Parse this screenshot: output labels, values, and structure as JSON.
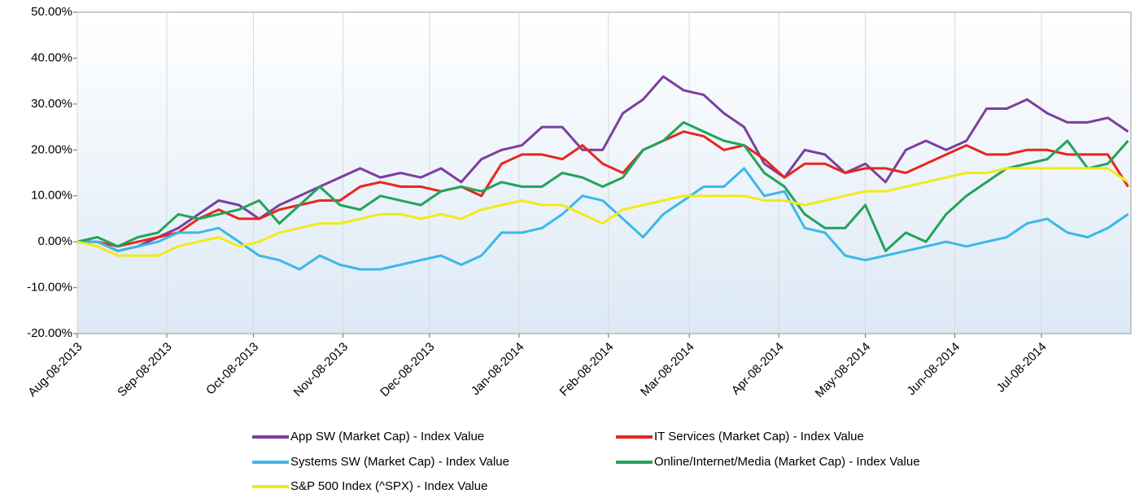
{
  "chart_data": {
    "type": "line",
    "x": [
      "2013-08-08",
      "2013-08-15",
      "2013-08-22",
      "2013-08-29",
      "2013-09-05",
      "2013-09-12",
      "2013-09-19",
      "2013-09-26",
      "2013-10-03",
      "2013-10-10",
      "2013-10-17",
      "2013-10-24",
      "2013-10-31",
      "2013-11-07",
      "2013-11-14",
      "2013-11-21",
      "2013-11-28",
      "2013-12-05",
      "2013-12-12",
      "2013-12-19",
      "2013-12-26",
      "2014-01-02",
      "2014-01-09",
      "2014-01-16",
      "2014-01-23",
      "2014-01-30",
      "2014-02-06",
      "2014-02-13",
      "2014-02-20",
      "2014-02-27",
      "2014-03-06",
      "2014-03-13",
      "2014-03-20",
      "2014-03-27",
      "2014-04-03",
      "2014-04-10",
      "2014-04-17",
      "2014-04-24",
      "2014-05-01",
      "2014-05-08",
      "2014-05-15",
      "2014-05-22",
      "2014-05-29",
      "2014-06-05",
      "2014-06-12",
      "2014-06-19",
      "2014-06-26",
      "2014-07-03",
      "2014-07-10",
      "2014-07-17",
      "2014-07-24",
      "2014-07-31",
      "2014-08-07"
    ],
    "series": [
      {
        "name": "App SW (Market Cap) - Index Value",
        "color": "#7b3f9e",
        "values": [
          0,
          0,
          -2,
          -1,
          1,
          3,
          6,
          9,
          8,
          5,
          8,
          10,
          12,
          14,
          16,
          14,
          15,
          14,
          16,
          13,
          18,
          20,
          21,
          25,
          25,
          20,
          20,
          28,
          31,
          36,
          33,
          32,
          28,
          25,
          17,
          14,
          20,
          19,
          15,
          17,
          13,
          20,
          22,
          20,
          22,
          29,
          29,
          31,
          28,
          26,
          26,
          27,
          24
        ]
      },
      {
        "name": "IT Services (Market Cap) - Index Value",
        "color": "#e8261c",
        "values": [
          0,
          0,
          -1,
          0,
          1,
          2,
          5,
          7,
          5,
          5,
          7,
          8,
          9,
          9,
          12,
          13,
          12,
          12,
          11,
          12,
          10,
          17,
          19,
          19,
          18,
          21,
          17,
          15,
          20,
          22,
          24,
          23,
          20,
          21,
          18,
          14,
          17,
          17,
          15,
          16,
          16,
          15,
          17,
          19,
          21,
          19,
          19,
          20,
          20,
          19,
          19,
          19,
          12
        ]
      },
      {
        "name": "Systems SW (Market Cap) - Index Value",
        "color": "#3bb8e8",
        "values": [
          0,
          0,
          -2,
          -1,
          0,
          2,
          2,
          3,
          0,
          -3,
          -4,
          -6,
          -3,
          -5,
          -6,
          -6,
          -5,
          -4,
          -3,
          -5,
          -3,
          2,
          2,
          3,
          6,
          10,
          9,
          5,
          1,
          6,
          9,
          12,
          12,
          16,
          10,
          11,
          3,
          2,
          -3,
          -4,
          -3,
          -2,
          -1,
          0,
          -1,
          0,
          1,
          4,
          5,
          2,
          1,
          3,
          6
        ]
      },
      {
        "name": "Online/Internet/Media (Market Cap) - Index Value",
        "color": "#22a35a",
        "values": [
          0,
          1,
          -1,
          1,
          2,
          6,
          5,
          6,
          7,
          9,
          4,
          8,
          12,
          8,
          7,
          10,
          9,
          8,
          11,
          12,
          11,
          13,
          12,
          12,
          15,
          14,
          12,
          14,
          20,
          22,
          26,
          24,
          22,
          21,
          15,
          12,
          6,
          3,
          3,
          8,
          -2,
          2,
          0,
          6,
          10,
          13,
          16,
          17,
          18,
          22,
          16,
          17,
          22
        ]
      },
      {
        "name": "S&P 500 Index (^SPX) - Index Value",
        "color": "#f2ea18",
        "values": [
          0,
          -1,
          -3,
          -3,
          -3,
          -1,
          0,
          1,
          -1,
          0,
          2,
          3,
          4,
          4,
          5,
          6,
          6,
          5,
          6,
          5,
          7,
          8,
          9,
          8,
          8,
          6,
          4,
          7,
          8,
          9,
          10,
          10,
          10,
          10,
          9,
          9,
          8,
          9,
          10,
          11,
          11,
          12,
          13,
          14,
          15,
          15,
          16,
          16,
          16,
          16,
          16,
          16,
          13
        ]
      }
    ],
    "xlim": [
      "2013-08-08",
      "2014-08-08"
    ],
    "xticks": [
      {
        "value": "2013-08-08",
        "label": "Aug-08-2013"
      },
      {
        "value": "2013-09-08",
        "label": "Sep-08-2013"
      },
      {
        "value": "2013-10-08",
        "label": "Oct-08-2013"
      },
      {
        "value": "2013-11-08",
        "label": "Nov-08-2013"
      },
      {
        "value": "2013-12-08",
        "label": "Dec-08-2013"
      },
      {
        "value": "2014-01-08",
        "label": "Jan-08-2014"
      },
      {
        "value": "2014-02-08",
        "label": "Feb-08-2014"
      },
      {
        "value": "2014-03-08",
        "label": "Mar-08-2014"
      },
      {
        "value": "2014-04-08",
        "label": "Apr-08-2014"
      },
      {
        "value": "2014-05-08",
        "label": "May-08-2014"
      },
      {
        "value": "2014-06-08",
        "label": "Jun-08-2014"
      },
      {
        "value": "2014-07-08",
        "label": "Jul-08-2014"
      }
    ],
    "ylim": [
      -20,
      50
    ],
    "yticks": [
      {
        "value": -20,
        "label": "-20.00%"
      },
      {
        "value": -10,
        "label": "-10.00%"
      },
      {
        "value": 0,
        "label": "0.00%"
      },
      {
        "value": 10,
        "label": "10.00%"
      },
      {
        "value": 20,
        "label": "20.00%"
      },
      {
        "value": 30,
        "label": "30.00%"
      },
      {
        "value": 40,
        "label": "40.00%"
      },
      {
        "value": 50,
        "label": "50.00%"
      }
    ],
    "grid": true
  }
}
